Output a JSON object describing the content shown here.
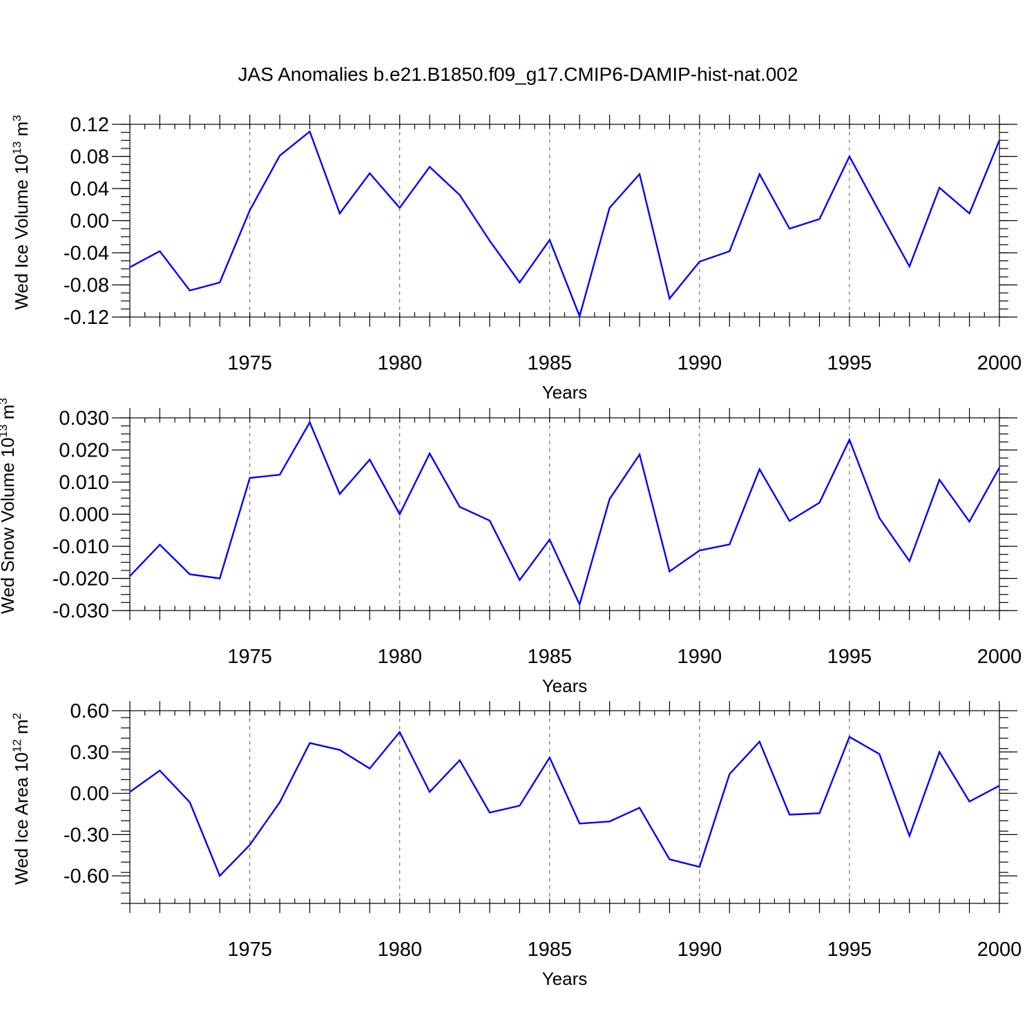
{
  "figure": {
    "title": "JAS Anomalies b.e21.B1850.f09_g17.CMIP6-DAMIP-hist-nat.002"
  },
  "chart_data": [
    {
      "type": "line",
      "title": "JAS Anomalies b.e21.B1850.f09_g17.CMIP6-DAMIP-hist-nat.002",
      "xlabel": "Years",
      "ylabel": {
        "prefix": "Wed Ice Volume 10",
        "exponent": "13",
        "unit": " m",
        "unit_exponent": "3"
      },
      "xlim": [
        1971,
        2000
      ],
      "ylim": [
        -0.12,
        0.12
      ],
      "x_ticks": [
        "1975",
        "1980",
        "1985",
        "1990",
        "1995",
        "2000"
      ],
      "y_ticks": [
        "0.12",
        "0.08",
        "0.04",
        "0.00",
        "-0.04",
        "-0.08",
        "-0.12"
      ],
      "grid": "vertical dashed at labeled years",
      "color": "#0000ff",
      "x": [
        1971,
        1972,
        1973,
        1974,
        1975,
        1976,
        1977,
        1978,
        1979,
        1980,
        1981,
        1982,
        1983,
        1984,
        1985,
        1986,
        1987,
        1988,
        1989,
        1990,
        1991,
        1992,
        1993,
        1994,
        1995,
        1996,
        1997,
        1998,
        1999,
        2000
      ],
      "values": [
        -0.058,
        -0.038,
        -0.087,
        -0.077,
        0.013,
        0.081,
        0.111,
        0.009,
        0.059,
        0.016,
        0.067,
        0.032,
        -0.025,
        -0.077,
        -0.024,
        -0.119,
        0.016,
        0.058,
        -0.097,
        -0.051,
        -0.038,
        0.058,
        -0.01,
        0.002,
        0.08,
        0.011,
        -0.057,
        0.041,
        0.009,
        0.1
      ]
    },
    {
      "type": "line",
      "xlabel": "Years",
      "ylabel": {
        "prefix": "Wed Snow Volume 10",
        "exponent": "13",
        "unit": " m",
        "unit_exponent": "3"
      },
      "xlim": [
        1971,
        2000
      ],
      "ylim": [
        -0.03,
        0.03
      ],
      "x_ticks": [
        "1975",
        "1980",
        "1985",
        "1990",
        "1995",
        "2000"
      ],
      "y_ticks": [
        "0.030",
        "0.020",
        "0.010",
        "0.000",
        "-0.010",
        "-0.020",
        "-0.030"
      ],
      "grid": "vertical dashed at labeled years",
      "color": "#0000ff",
      "x": [
        1971,
        1972,
        1973,
        1974,
        1975,
        1976,
        1977,
        1978,
        1979,
        1980,
        1981,
        1982,
        1983,
        1984,
        1985,
        1986,
        1987,
        1988,
        1989,
        1990,
        1991,
        1992,
        1993,
        1994,
        1995,
        1996,
        1997,
        1998,
        1999,
        2000
      ],
      "values": [
        -0.0193,
        -0.0095,
        -0.0187,
        -0.02,
        0.0113,
        0.0123,
        0.0286,
        0.0063,
        0.017,
        0.0,
        0.0189,
        0.0023,
        -0.002,
        -0.0205,
        -0.0079,
        -0.0281,
        0.0047,
        0.0186,
        -0.0178,
        -0.0113,
        -0.0094,
        0.014,
        -0.0021,
        0.0036,
        0.0232,
        -0.0012,
        -0.0146,
        0.0107,
        -0.0023,
        0.0145
      ]
    },
    {
      "type": "line",
      "xlabel": "Years",
      "ylabel": {
        "prefix": "Wed Ice Area 10",
        "exponent": "12",
        "unit": " m",
        "unit_exponent": "2"
      },
      "xlim": [
        1971,
        2000
      ],
      "ylim": [
        -0.8,
        0.6
      ],
      "x_ticks": [
        "1975",
        "1980",
        "1985",
        "1990",
        "1995",
        "2000"
      ],
      "y_ticks": [
        "0.60",
        "0.30",
        "0.00",
        "-0.30",
        "-0.60"
      ],
      "grid": "vertical dashed at labeled years",
      "color": "#0000ff",
      "x": [
        1971,
        1972,
        1973,
        1974,
        1975,
        1976,
        1977,
        1978,
        1979,
        1980,
        1981,
        1982,
        1983,
        1984,
        1985,
        1986,
        1987,
        1988,
        1989,
        1990,
        1991,
        1992,
        1993,
        1994,
        1995,
        1996,
        1997,
        1998,
        1999,
        2000
      ],
      "values": [
        0.01,
        0.165,
        -0.065,
        -0.6,
        -0.375,
        -0.065,
        0.365,
        0.315,
        0.18,
        0.445,
        0.01,
        0.24,
        -0.14,
        -0.09,
        0.26,
        -0.22,
        -0.205,
        -0.105,
        -0.48,
        -0.535,
        0.14,
        0.375,
        -0.155,
        -0.145,
        0.41,
        0.285,
        -0.31,
        0.3,
        -0.06,
        0.055
      ]
    }
  ]
}
